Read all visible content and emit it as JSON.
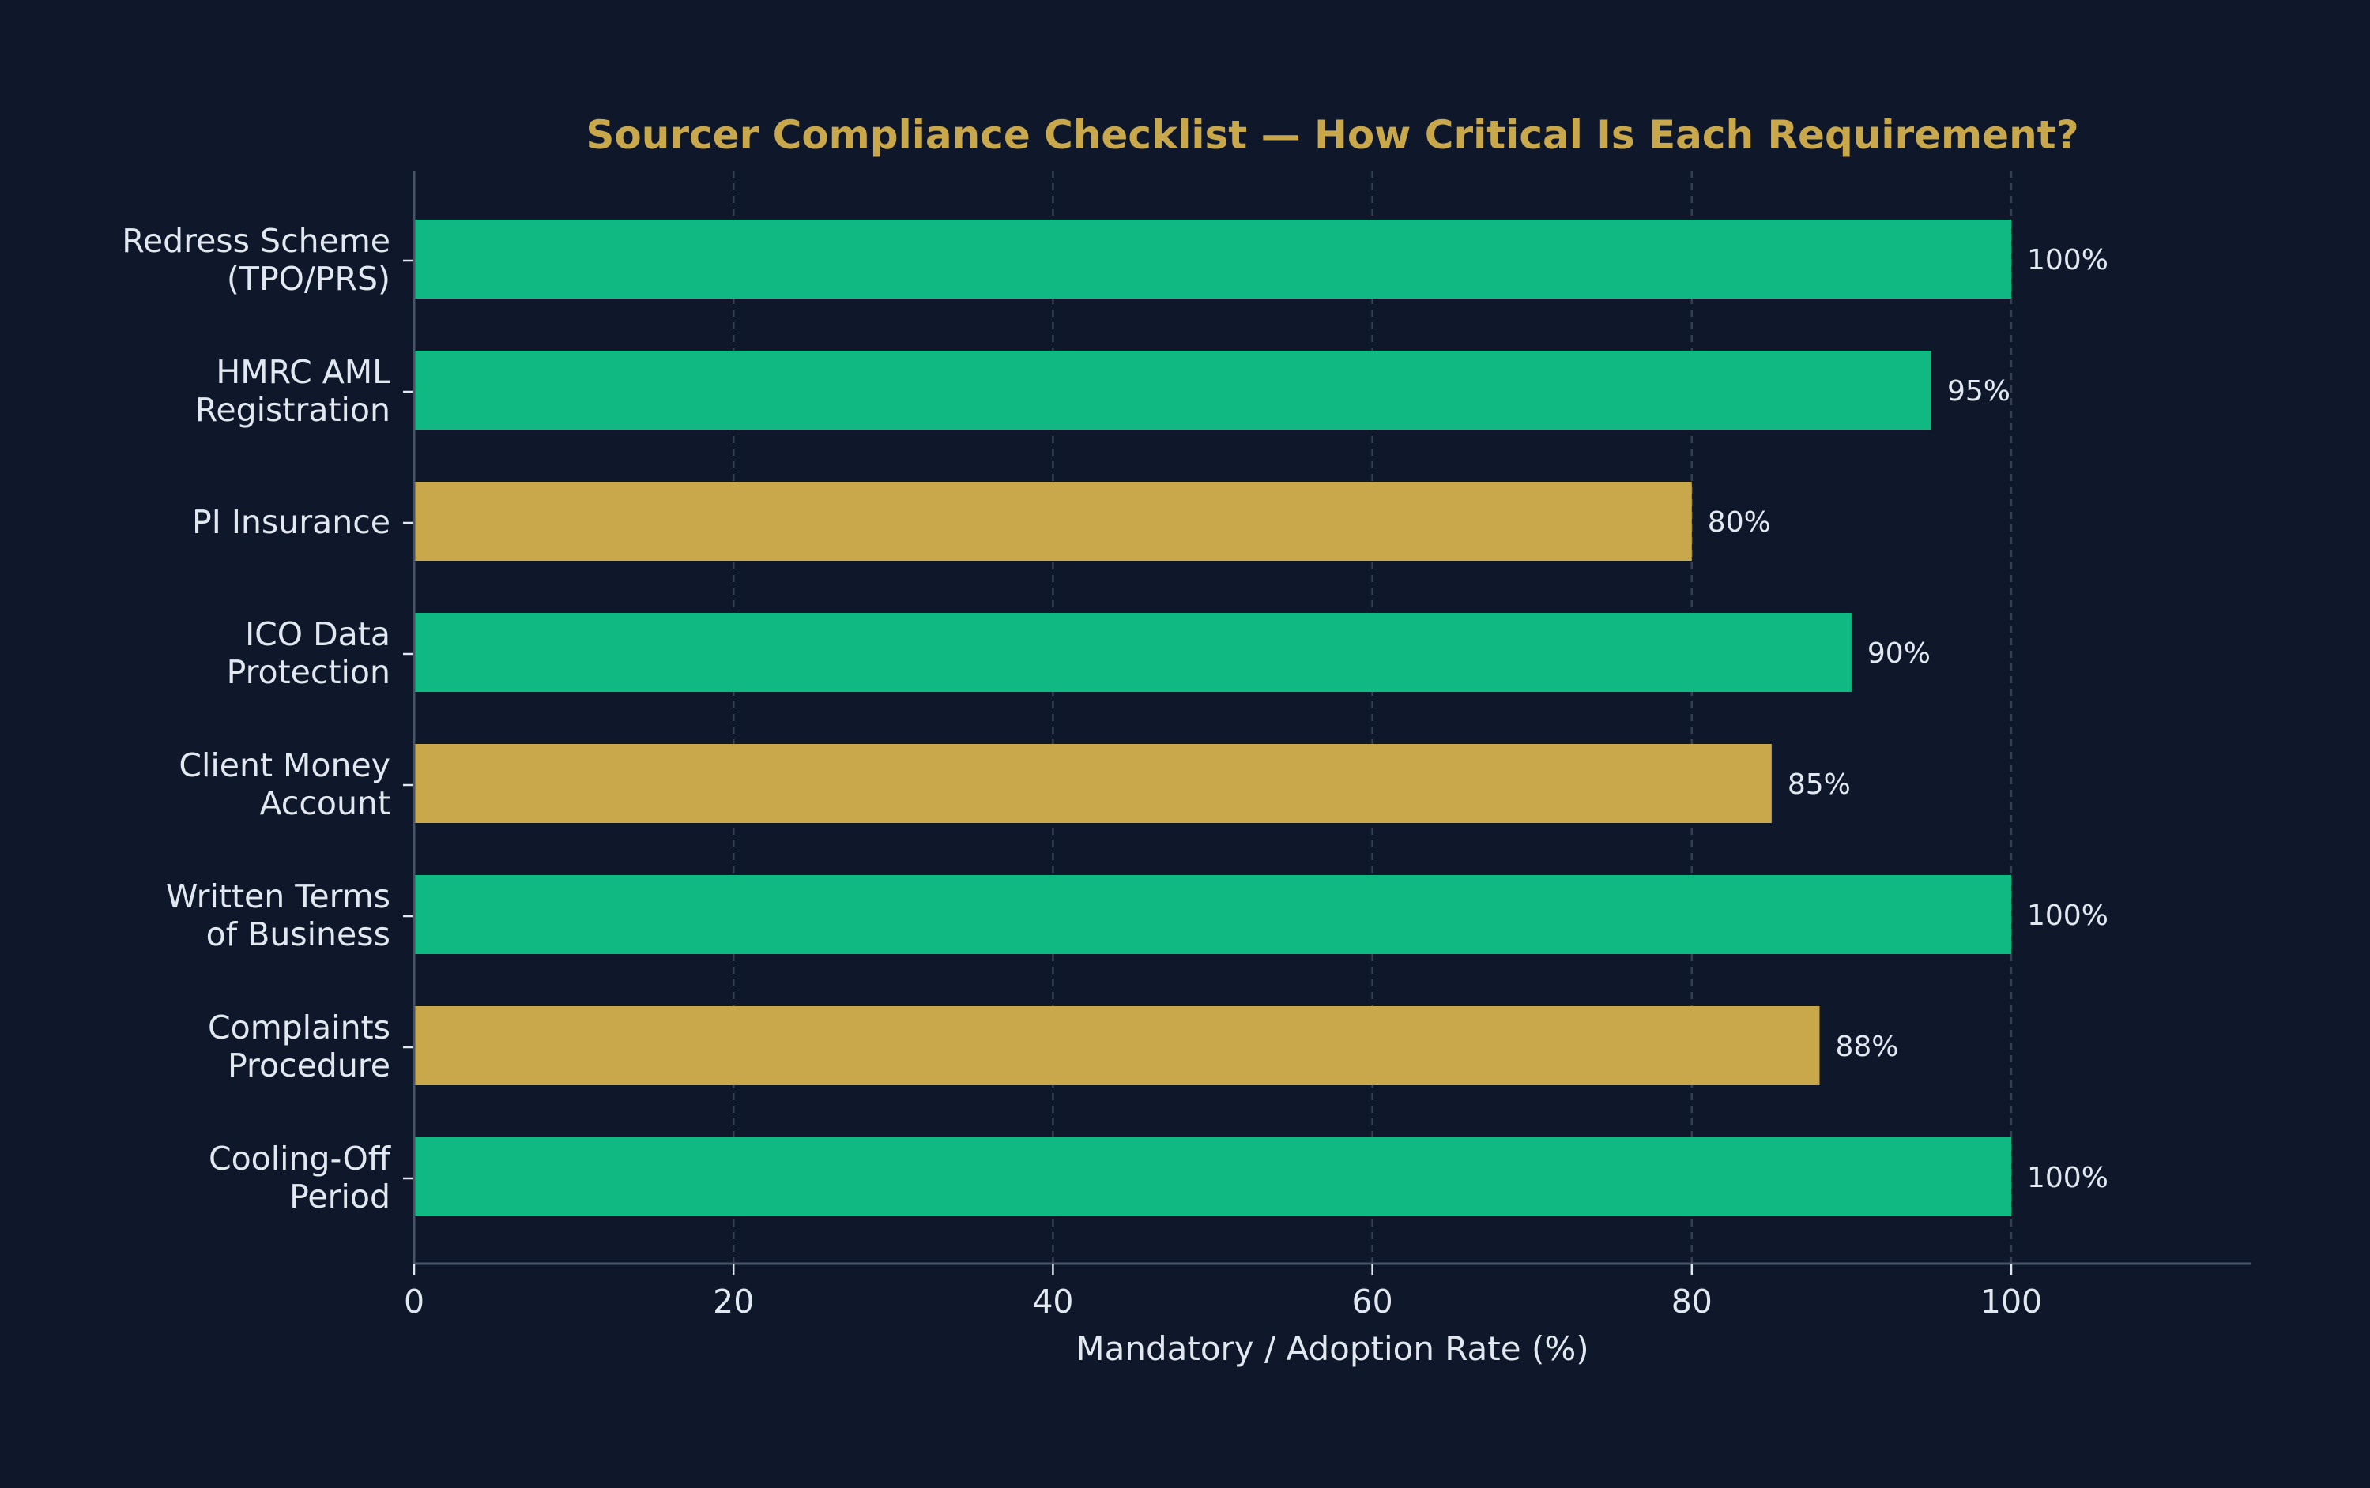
{
  "chart_data": {
    "type": "bar",
    "orientation": "horizontal",
    "title": "Sourcer Compliance Checklist — How Critical Is Each Requirement?",
    "xlabel": "Mandatory / Adoption Rate (%)",
    "ylabel": "",
    "xlim": [
      0,
      115
    ],
    "xticks": [
      0,
      20,
      40,
      60,
      80,
      100
    ],
    "grid": "vertical dashed",
    "legend": "none",
    "categories": [
      [
        "Redress Scheme",
        "(TPO/PRS)"
      ],
      [
        "HMRC AML",
        "Registration"
      ],
      [
        "PI Insurance"
      ],
      [
        "ICO Data",
        "Protection"
      ],
      [
        "Client Money",
        "Account"
      ],
      [
        "Written Terms",
        "of Business"
      ],
      [
        "Complaints",
        "Procedure"
      ],
      [
        "Cooling-Off",
        "Period"
      ]
    ],
    "values": [
      100,
      95,
      80,
      90,
      85,
      100,
      88,
      100
    ],
    "value_labels": [
      "100%",
      "95%",
      "80%",
      "90%",
      "85%",
      "100%",
      "88%",
      "100%"
    ],
    "bar_colors": [
      "#10b981",
      "#10b981",
      "#c9a84c",
      "#10b981",
      "#c9a84c",
      "#10b981",
      "#c9a84c",
      "#10b981"
    ]
  },
  "colors": {
    "background": "#0f172a",
    "title": "#c9a84c",
    "text": "#e2e8f0",
    "axis": "#475569",
    "grid": "#334155"
  }
}
